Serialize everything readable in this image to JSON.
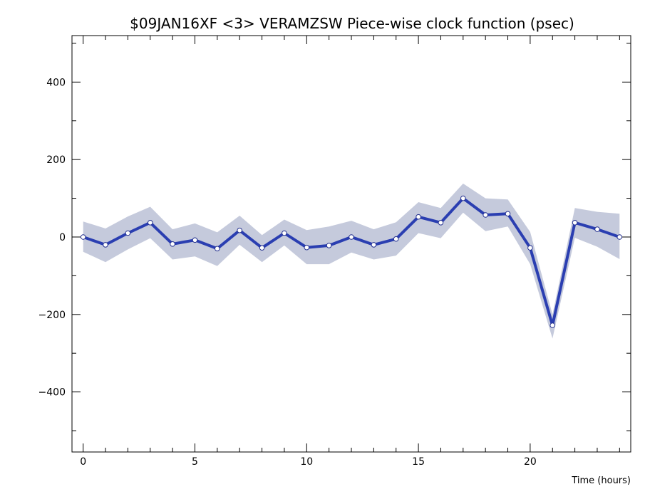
{
  "chart_data": {
    "type": "line",
    "title": "$09JAN16XF <3>  VERAMZSW  Piece-wise clock function (psec)",
    "xlabel": "Time (hours)",
    "ylabel": "",
    "xlim": [
      -0.5,
      24.5
    ],
    "ylim": [
      -555,
      520
    ],
    "xticks": [
      0,
      5,
      10,
      15,
      20
    ],
    "yticks": [
      -400,
      -200,
      0,
      200,
      400
    ],
    "xtick_labels": [
      "0",
      "5",
      "10",
      "15",
      "20"
    ],
    "ytick_labels": [
      "−400",
      "−200",
      "0",
      "200",
      "400"
    ],
    "grid": false,
    "series": [
      {
        "x": [
          0,
          1,
          2,
          3,
          4,
          5,
          6,
          7,
          8,
          9,
          10,
          11,
          12,
          13,
          14,
          15,
          16,
          17,
          18,
          19,
          20,
          21,
          22,
          23,
          24
        ],
        "y": [
          0,
          -20,
          10,
          37,
          -18,
          -8,
          -30,
          17,
          -28,
          10,
          -27,
          -22,
          0,
          -20,
          -5,
          52,
          37,
          100,
          57,
          60,
          -28,
          -228,
          37,
          20,
          0
        ],
        "upper": [
          40,
          22,
          53,
          78,
          20,
          35,
          12,
          55,
          5,
          45,
          18,
          27,
          42,
          20,
          38,
          90,
          75,
          138,
          100,
          97,
          13,
          -200,
          75,
          65,
          60
        ],
        "lower": [
          -38,
          -65,
          -32,
          -3,
          -58,
          -50,
          -75,
          -20,
          -65,
          -22,
          -70,
          -70,
          -40,
          -58,
          -48,
          10,
          -3,
          63,
          15,
          27,
          -70,
          -262,
          -2,
          -25,
          -57
        ]
      }
    ],
    "colors": {
      "line": "#2a3eb1",
      "band": "#c5cadc",
      "marker_fill": "#ffffff",
      "frame": "#000000"
    }
  }
}
